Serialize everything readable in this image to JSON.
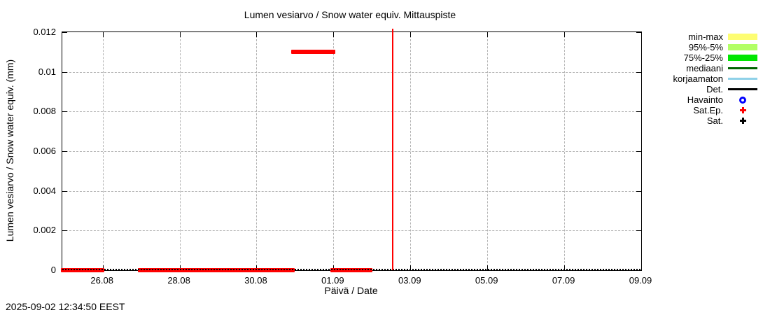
{
  "header": {
    "title": "Lumen vesiarvo / Snow water equiv.  Mittauspiste"
  },
  "footer": {
    "timestamp": "2025-09-02 12:34:50 EEST"
  },
  "colors": {
    "background": "#ffffff",
    "grid": "#b3b3b3",
    "axis": "#000000",
    "observation_red": "#ff0000",
    "now_line": "#ff0000"
  },
  "chart_data": {
    "type": "line",
    "title": "Lumen vesiarvo / Snow water equiv.  Mittauspiste",
    "xlabel": "Päivä / Date",
    "ylabel": "Lumen vesiarvo / Snow water equiv. (mm)",
    "grid": true,
    "x_axis": {
      "unit": "days since 2025-08-25 00:00",
      "min": -0.05,
      "max": 15.0,
      "ticks": [
        {
          "label": "26.08",
          "day": 1
        },
        {
          "label": "28.08",
          "day": 3
        },
        {
          "label": "30.08",
          "day": 5
        },
        {
          "label": "01.09",
          "day": 7
        },
        {
          "label": "03.09",
          "day": 9
        },
        {
          "label": "05.09",
          "day": 11
        },
        {
          "label": "07.09",
          "day": 13
        },
        {
          "label": "09.09",
          "day": 15
        }
      ]
    },
    "y_axis": {
      "min": 0,
      "max": 0.012,
      "ticks": [
        {
          "label": "0",
          "value": 0
        },
        {
          "label": "0.002",
          "value": 0.002
        },
        {
          "label": "0.004",
          "value": 0.004
        },
        {
          "label": "0.006",
          "value": 0.006
        },
        {
          "label": "0.008",
          "value": 0.008
        },
        {
          "label": "0.01",
          "value": 0.01
        },
        {
          "label": "0.012",
          "value": 0.012
        }
      ]
    },
    "series": [
      {
        "name": "Sat.Ep.",
        "color": "#ff0000",
        "style": "thick-marker-segments",
        "value_unit": "mm",
        "segments": [
          {
            "start_day": -0.05,
            "end_day": 1.0,
            "value": 0
          },
          {
            "start_day": 1.95,
            "end_day": 5.95,
            "value": 0
          },
          {
            "start_day": 5.93,
            "end_day": 7.02,
            "value": 0.011
          },
          {
            "start_day": 6.95,
            "end_day": 7.98,
            "value": 0
          }
        ]
      },
      {
        "name": "Det.",
        "color": "#000000",
        "style": "dotted-line",
        "value_unit": "mm",
        "segments": [
          {
            "start_day": -0.05,
            "end_day": 15.0,
            "value": 0
          }
        ]
      }
    ],
    "now_marker": {
      "day": 8.524,
      "color": "#ff0000",
      "datetime": "2025-09-02 12:34:50 EEST"
    }
  },
  "legend": {
    "items": [
      {
        "label": "min-max",
        "swatch": "box",
        "color": "#fdfd72",
        "icon": "minmax-band-swatch"
      },
      {
        "label": "95%-5%",
        "swatch": "box",
        "color": "#b2ff66",
        "icon": "p95-p5-band-swatch"
      },
      {
        "label": "75%-25%",
        "swatch": "box",
        "color": "#00e600",
        "icon": "p75-p25-band-swatch"
      },
      {
        "label": "mediaani",
        "swatch": "line",
        "color": "#006400",
        "icon": "median-line-swatch"
      },
      {
        "label": "korjaamaton",
        "swatch": "line",
        "color": "#8ed1e8",
        "icon": "uncorrected-line-swatch"
      },
      {
        "label": "Det.",
        "swatch": "line",
        "color": "#000000",
        "icon": "deterministic-line-swatch"
      },
      {
        "label": "Havainto",
        "swatch": "donut",
        "color": "#0000ff",
        "icon": "observation-point-swatch"
      },
      {
        "label": "Sat.Ep.",
        "swatch": "cross",
        "color": "#ff0000",
        "icon": "satellite-uncertain-point-swatch"
      },
      {
        "label": "Sat.",
        "swatch": "cross",
        "color": "#000000",
        "icon": "satellite-point-swatch"
      }
    ]
  }
}
